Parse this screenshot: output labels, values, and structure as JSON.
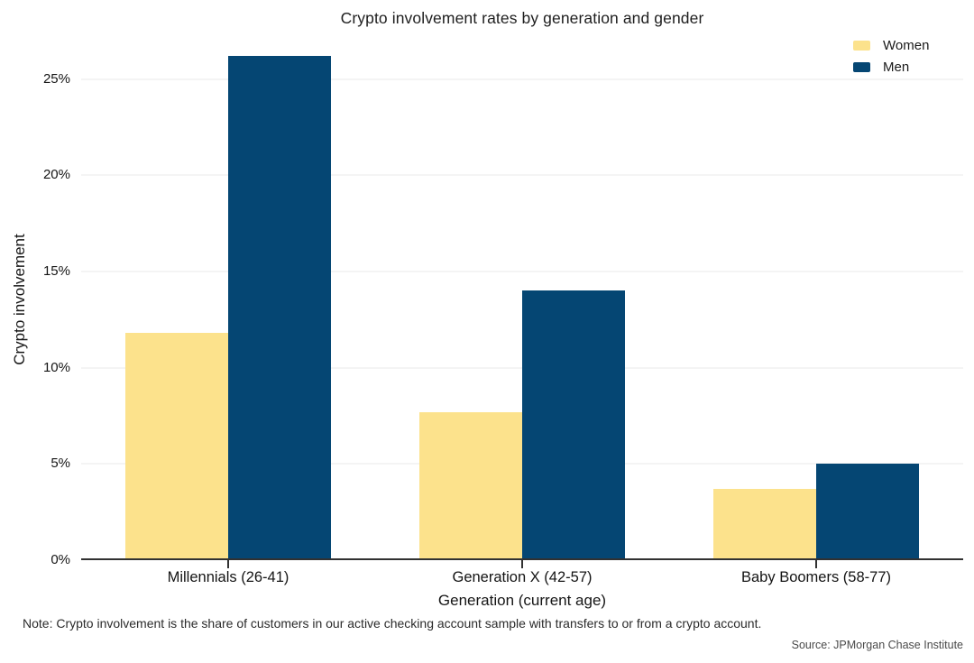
{
  "title": "Crypto involvement rates by generation and gender",
  "legend": {
    "position": "top-right",
    "items": [
      {
        "label": "Women",
        "color": "#fce28c"
      },
      {
        "label": "Men",
        "color": "#054673"
      }
    ]
  },
  "chart_data": {
    "type": "bar",
    "title": "Crypto involvement rates by generation and gender",
    "categories": [
      "Millennials (26-41)",
      "Generation X (42-57)",
      "Baby Boomers (58-77)"
    ],
    "series": [
      {
        "name": "Women",
        "color": "#fce28c",
        "values": [
          11.8,
          7.7,
          3.7
        ]
      },
      {
        "name": "Men",
        "color": "#054673",
        "values": [
          26.2,
          14.0,
          5.0
        ]
      }
    ],
    "xlabel": "Generation (current age)",
    "ylabel": "Crypto involvement",
    "ylim": [
      0,
      26.3
    ],
    "yticks": {
      "values": [
        0,
        5,
        10,
        15,
        20,
        25
      ],
      "labels": [
        "0%",
        "5%",
        "10%",
        "15%",
        "20%",
        "25%"
      ]
    },
    "grid": "horizontal faint lines at each 5% tick",
    "gridline_color": "#f4f4f4",
    "axis_color": "#313131",
    "legend_position": "top-right"
  },
  "footnote": "Note: Crypto involvement is the share of customers in our active checking account sample with transfers to or from a crypto account.",
  "source": "Source: JPMorgan Chase Institute"
}
